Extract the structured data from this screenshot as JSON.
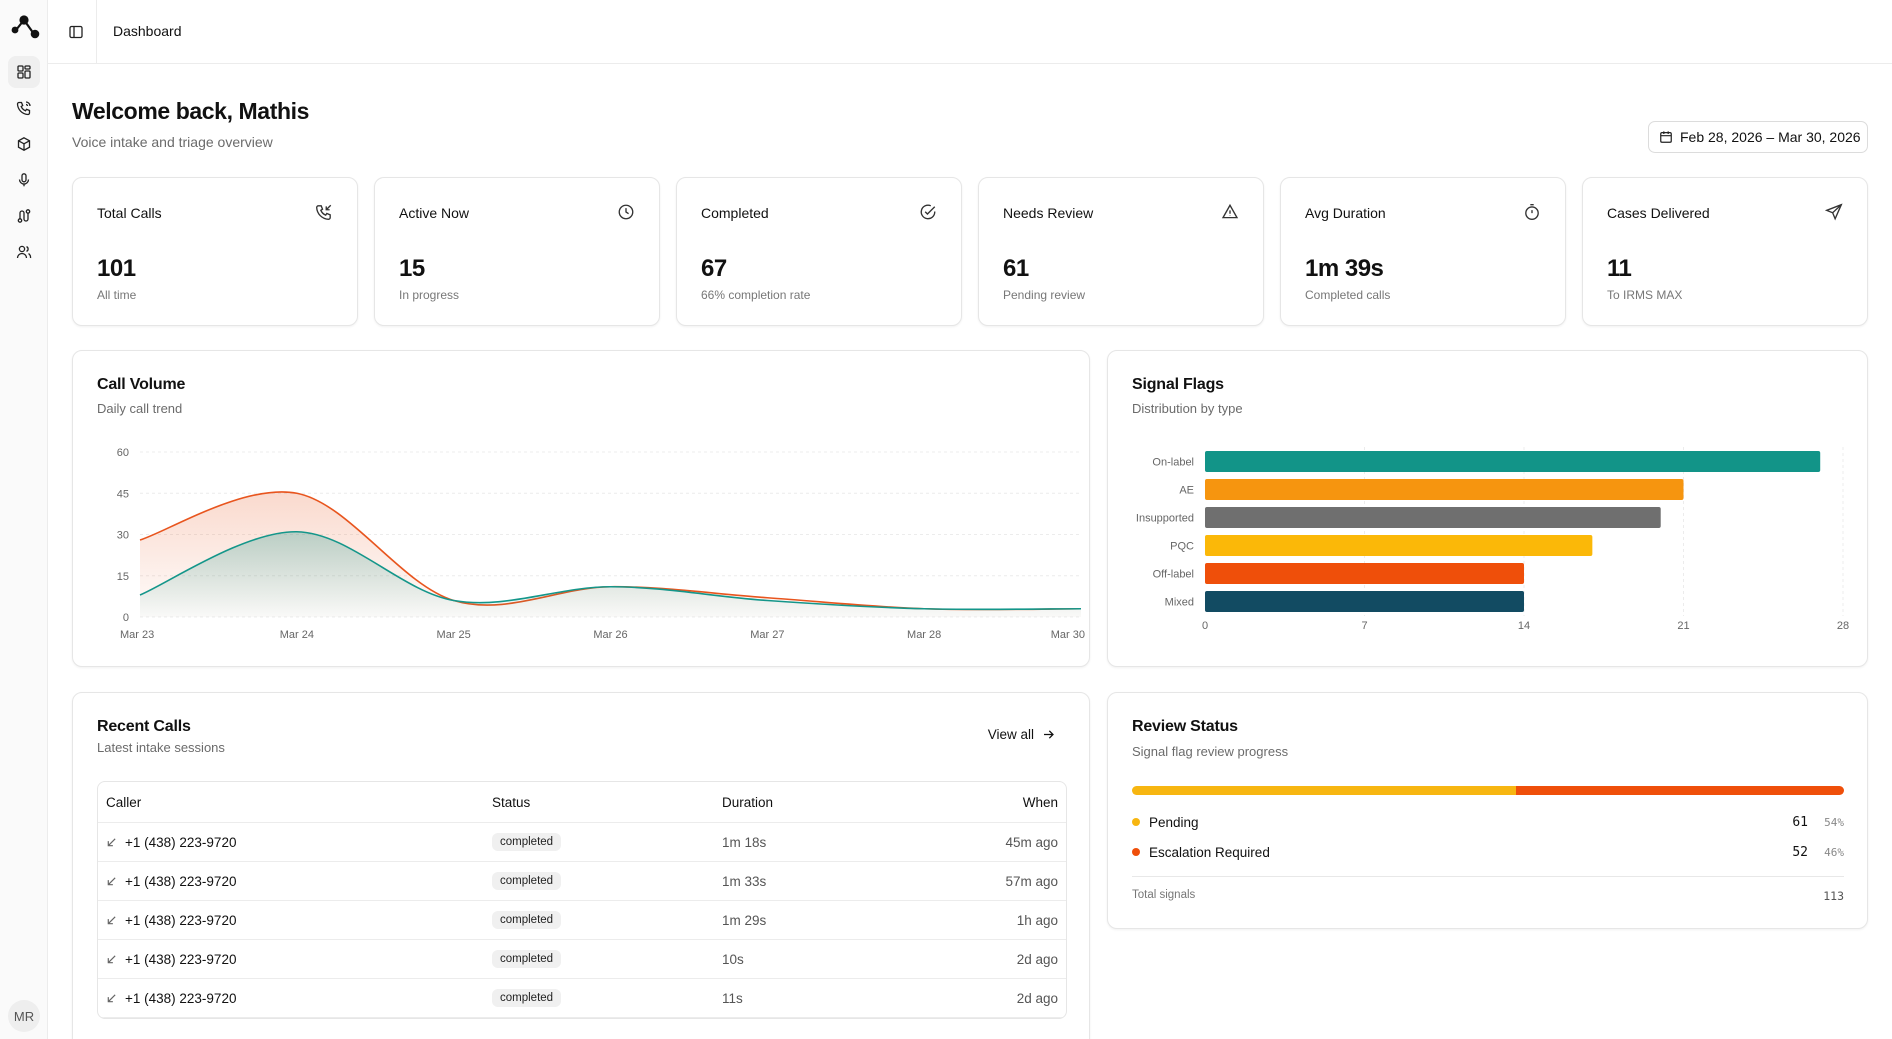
{
  "topbar": {
    "breadcrumb": "Dashboard"
  },
  "sidebar": {
    "items": [
      {
        "name": "dashboard",
        "icon": "layout-grid-icon",
        "active": true
      },
      {
        "name": "calls",
        "icon": "phone-icon",
        "active": false
      },
      {
        "name": "products",
        "icon": "box-icon",
        "active": false
      },
      {
        "name": "voice",
        "icon": "microphone-icon",
        "active": false
      },
      {
        "name": "workflows",
        "icon": "route-icon",
        "active": false
      },
      {
        "name": "users",
        "icon": "users-icon",
        "active": false
      }
    ],
    "avatar_initials": "MR"
  },
  "header": {
    "title": "Welcome back, Mathis",
    "subtitle": "Voice intake and triage overview",
    "date_range": "Feb 28, 2026 – Mar 30, 2026"
  },
  "stats": [
    {
      "label": "Total Calls",
      "value": "101",
      "hint": "All time",
      "icon": "phone-incoming-icon"
    },
    {
      "label": "Active Now",
      "value": "15",
      "hint": "In progress",
      "icon": "clock-icon"
    },
    {
      "label": "Completed",
      "value": "67",
      "hint": "66% completion rate",
      "icon": "check-circle-icon"
    },
    {
      "label": "Needs Review",
      "value": "61",
      "hint": "Pending review",
      "icon": "alert-triangle-icon"
    },
    {
      "label": "Avg Duration",
      "value": "1m 39s",
      "hint": "Completed calls",
      "icon": "timer-icon"
    },
    {
      "label": "Cases Delivered",
      "value": "11",
      "hint": "To IRMS MAX",
      "icon": "send-icon"
    }
  ],
  "call_volume": {
    "title": "Call Volume",
    "subtitle": "Daily call trend"
  },
  "signal_flags": {
    "title": "Signal Flags",
    "subtitle": "Distribution by type"
  },
  "chart_data": [
    {
      "type": "area",
      "title": "Call Volume",
      "subtitle": "Daily call trend",
      "categories": [
        "Mar 23",
        "Mar 24",
        "Mar 25",
        "Mar 26",
        "Mar 27",
        "Mar 28",
        "Mar 30"
      ],
      "series": [
        {
          "color": "#e8551e",
          "values": [
            28,
            45,
            6,
            11,
            7,
            3,
            3
          ]
        },
        {
          "color": "#14968a",
          "values": [
            8,
            31,
            6,
            11,
            6,
            3,
            3
          ]
        }
      ],
      "yticks": [
        0,
        15,
        30,
        45,
        60
      ],
      "ylim": [
        0,
        60
      ],
      "grid": true
    },
    {
      "type": "bar",
      "orientation": "horizontal",
      "title": "Signal Flags",
      "subtitle": "Distribution by type",
      "categories": [
        "On-label",
        "AE",
        "Insupported",
        "PQC",
        "Off-label",
        "Mixed"
      ],
      "values": [
        27,
        21,
        20,
        17,
        14,
        14
      ],
      "colors": [
        "#129488",
        "#f6950f",
        "#6f6f6f",
        "#fbb808",
        "#ef4f0a",
        "#124b62"
      ],
      "xticks": [
        0,
        7,
        14,
        21,
        28
      ],
      "xlim": [
        0,
        28
      ],
      "grid": true
    }
  ],
  "recent_calls": {
    "title": "Recent Calls",
    "subtitle": "Latest intake sessions",
    "view_all": "View all",
    "columns": {
      "caller": "Caller",
      "status": "Status",
      "duration": "Duration",
      "when": "When"
    },
    "rows": [
      {
        "caller": "+1 (438) 223-9720",
        "status": "completed",
        "duration": "1m 18s",
        "when": "45m ago"
      },
      {
        "caller": "+1 (438) 223-9720",
        "status": "completed",
        "duration": "1m 33s",
        "when": "57m ago"
      },
      {
        "caller": "+1 (438) 223-9720",
        "status": "completed",
        "duration": "1m 29s",
        "when": "1h ago"
      },
      {
        "caller": "+1 (438) 223-9720",
        "status": "completed",
        "duration": "10s",
        "when": "2d ago"
      },
      {
        "caller": "+1 (438) 223-9720",
        "status": "completed",
        "duration": "11s",
        "when": "2d ago"
      }
    ]
  },
  "review_status": {
    "title": "Review Status",
    "subtitle": "Signal flag review progress",
    "items": [
      {
        "label": "Pending",
        "count": "61",
        "pct": "54%",
        "fraction": 0.54,
        "color": "#f7b611"
      },
      {
        "label": "Escalation Required",
        "count": "52",
        "pct": "46%",
        "fraction": 0.46,
        "color": "#ef4f0a"
      }
    ],
    "total_label": "Total signals",
    "total_value": "113"
  }
}
